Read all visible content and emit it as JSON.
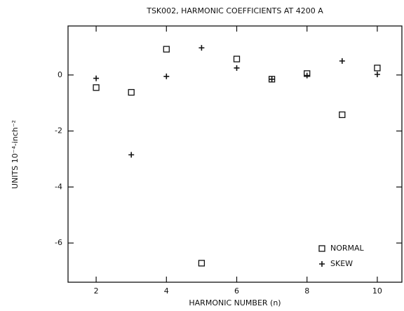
{
  "chart_data": {
    "type": "scatter",
    "title": "TSK002, HARMONIC COEFFICIENTS AT 4200 A",
    "x_label": "HARMONIC NUMBER (n)",
    "y_label": "UNITS 10⁻⁴-inch⁻²",
    "x": [
      2,
      3,
      4,
      5,
      6,
      7,
      8,
      9,
      10
    ],
    "series": [
      {
        "name": "NORMAL",
        "color": "#111111",
        "marker": "square",
        "values": [
          -0.45,
          -0.62,
          0.92,
          -6.72,
          0.57,
          -0.15,
          0.05,
          -1.42,
          0.25
        ]
      },
      {
        "name": "SKEW",
        "color": "#111111",
        "marker": "plus",
        "values": [
          -0.12,
          -2.85,
          -0.05,
          0.97,
          0.25,
          -0.15,
          -0.02,
          0.5,
          0.02
        ]
      }
    ],
    "xlim": [
      1.2,
      10.7
    ],
    "xticks": [
      2,
      4,
      6,
      8,
      10
    ],
    "ylim": [
      -7.4,
      1.75
    ],
    "yticks": [
      -6,
      -4,
      -2,
      0
    ],
    "grid": false,
    "legend": "lower right"
  }
}
